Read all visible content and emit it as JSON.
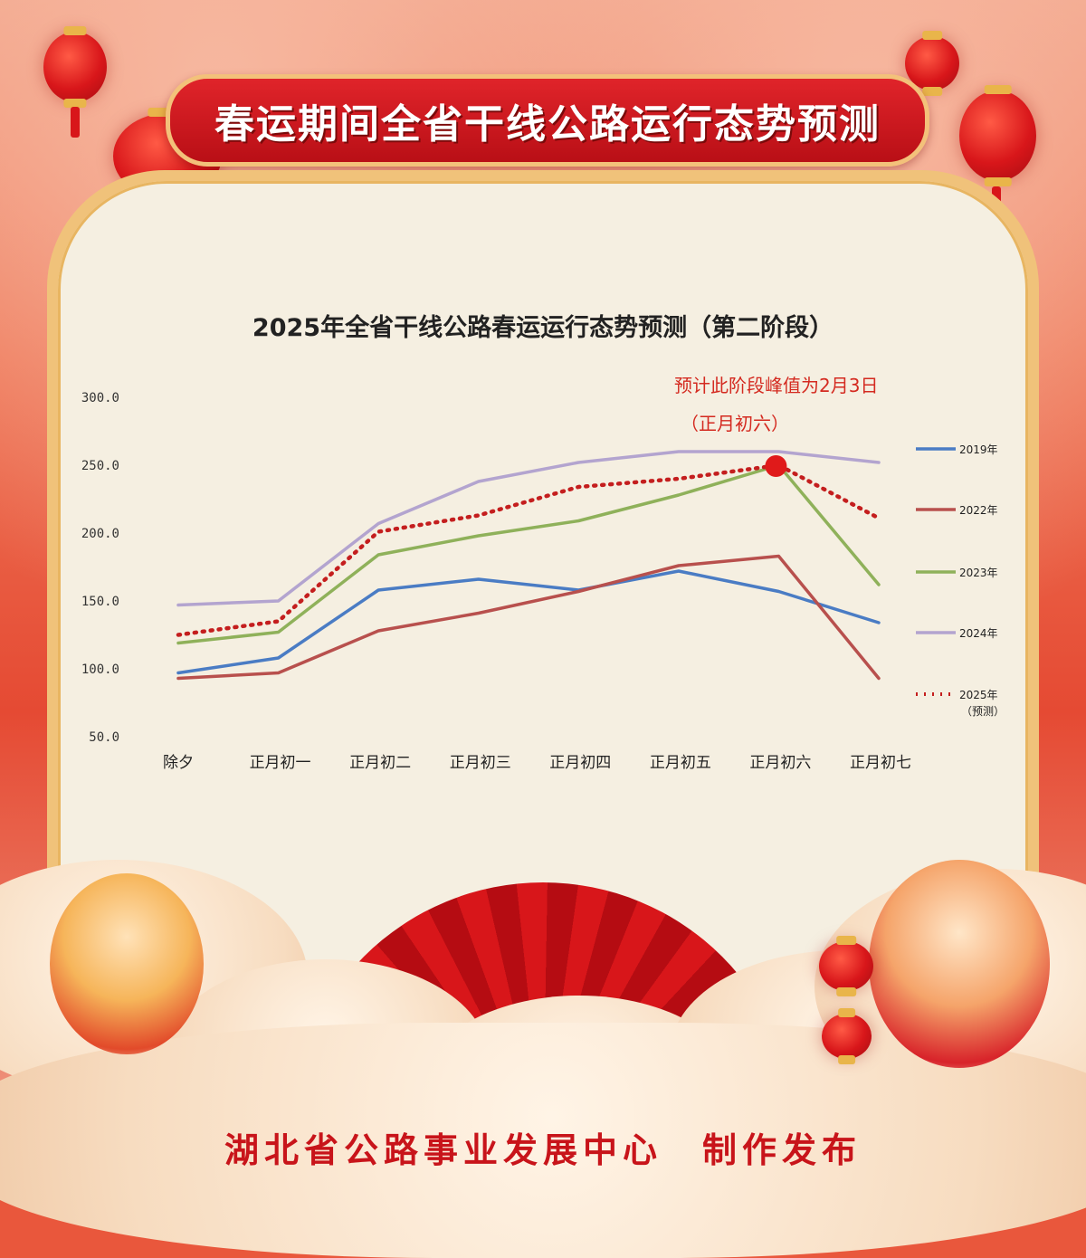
{
  "header": {
    "title": "春运期间全省干线公路运行态势预测"
  },
  "chart_data": {
    "type": "line",
    "title": "2025年全省干线公路春运运行态势预测（第二阶段）",
    "categories": [
      "除夕",
      "正月初一",
      "正月初二",
      "正月初三",
      "正月初四",
      "正月初五",
      "正月初六",
      "正月初七"
    ],
    "yticks": [
      "300.0",
      "250.0",
      "200.0",
      "150.0",
      "100.0",
      "50.0"
    ],
    "ylim": [
      50,
      300
    ],
    "grid": false,
    "legend_position": "right",
    "series": [
      {
        "name": "2019年",
        "values": [
          97,
          108,
          158,
          166,
          158,
          172,
          157,
          134
        ],
        "color": "#4a7cc4",
        "dashed": false
      },
      {
        "name": "2022年",
        "values": [
          93,
          97,
          128,
          141,
          157,
          176,
          183,
          93
        ],
        "color": "#b8504d",
        "dashed": false
      },
      {
        "name": "2023年",
        "values": [
          119,
          127,
          184,
          198,
          209,
          228,
          250,
          162
        ],
        "color": "#8fb15a",
        "dashed": false
      },
      {
        "name": "2024年",
        "values": [
          147,
          150,
          207,
          238,
          252,
          260,
          260,
          252
        ],
        "color": "#b3a4cf",
        "dashed": false
      },
      {
        "name": "2025年（预测）",
        "values": [
          125,
          135,
          201,
          213,
          234,
          240,
          250,
          211
        ],
        "color": "#c41e1e",
        "dashed": true
      }
    ],
    "peak": {
      "category": "正月初六",
      "value": 250,
      "color": "#e01a1a"
    },
    "annotation": {
      "line1": "预计此阶段峰值为2月3日",
      "line2": "（正月初六）"
    }
  },
  "footer": {
    "text": "湖北省公路事业发展中心　制作发布"
  }
}
